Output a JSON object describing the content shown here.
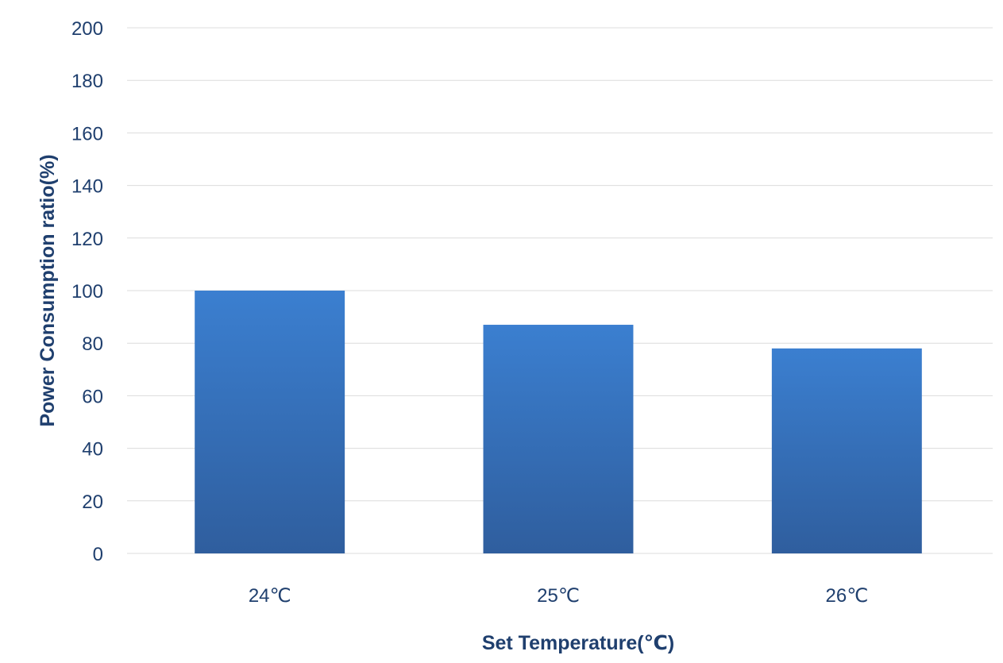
{
  "chart_data": {
    "type": "bar",
    "title": "",
    "xlabel": "Set Temperature(℃)",
    "ylabel": "Power Consumption ratio(%)",
    "categories": [
      "24℃",
      "25℃",
      "26℃"
    ],
    "series": [
      {
        "values": [
          100,
          87,
          78
        ]
      }
    ],
    "ylim": [
      0,
      200
    ],
    "yticks": [
      0,
      20,
      40,
      60,
      80,
      100,
      120,
      140,
      160,
      180,
      200
    ],
    "grid": true,
    "legend": "none",
    "colors": {
      "bar_top": "#3b7fd0",
      "bar_bottom": "#2f5e9e",
      "text": "#1f3f6e",
      "grid": "#dcdcdc"
    }
  }
}
